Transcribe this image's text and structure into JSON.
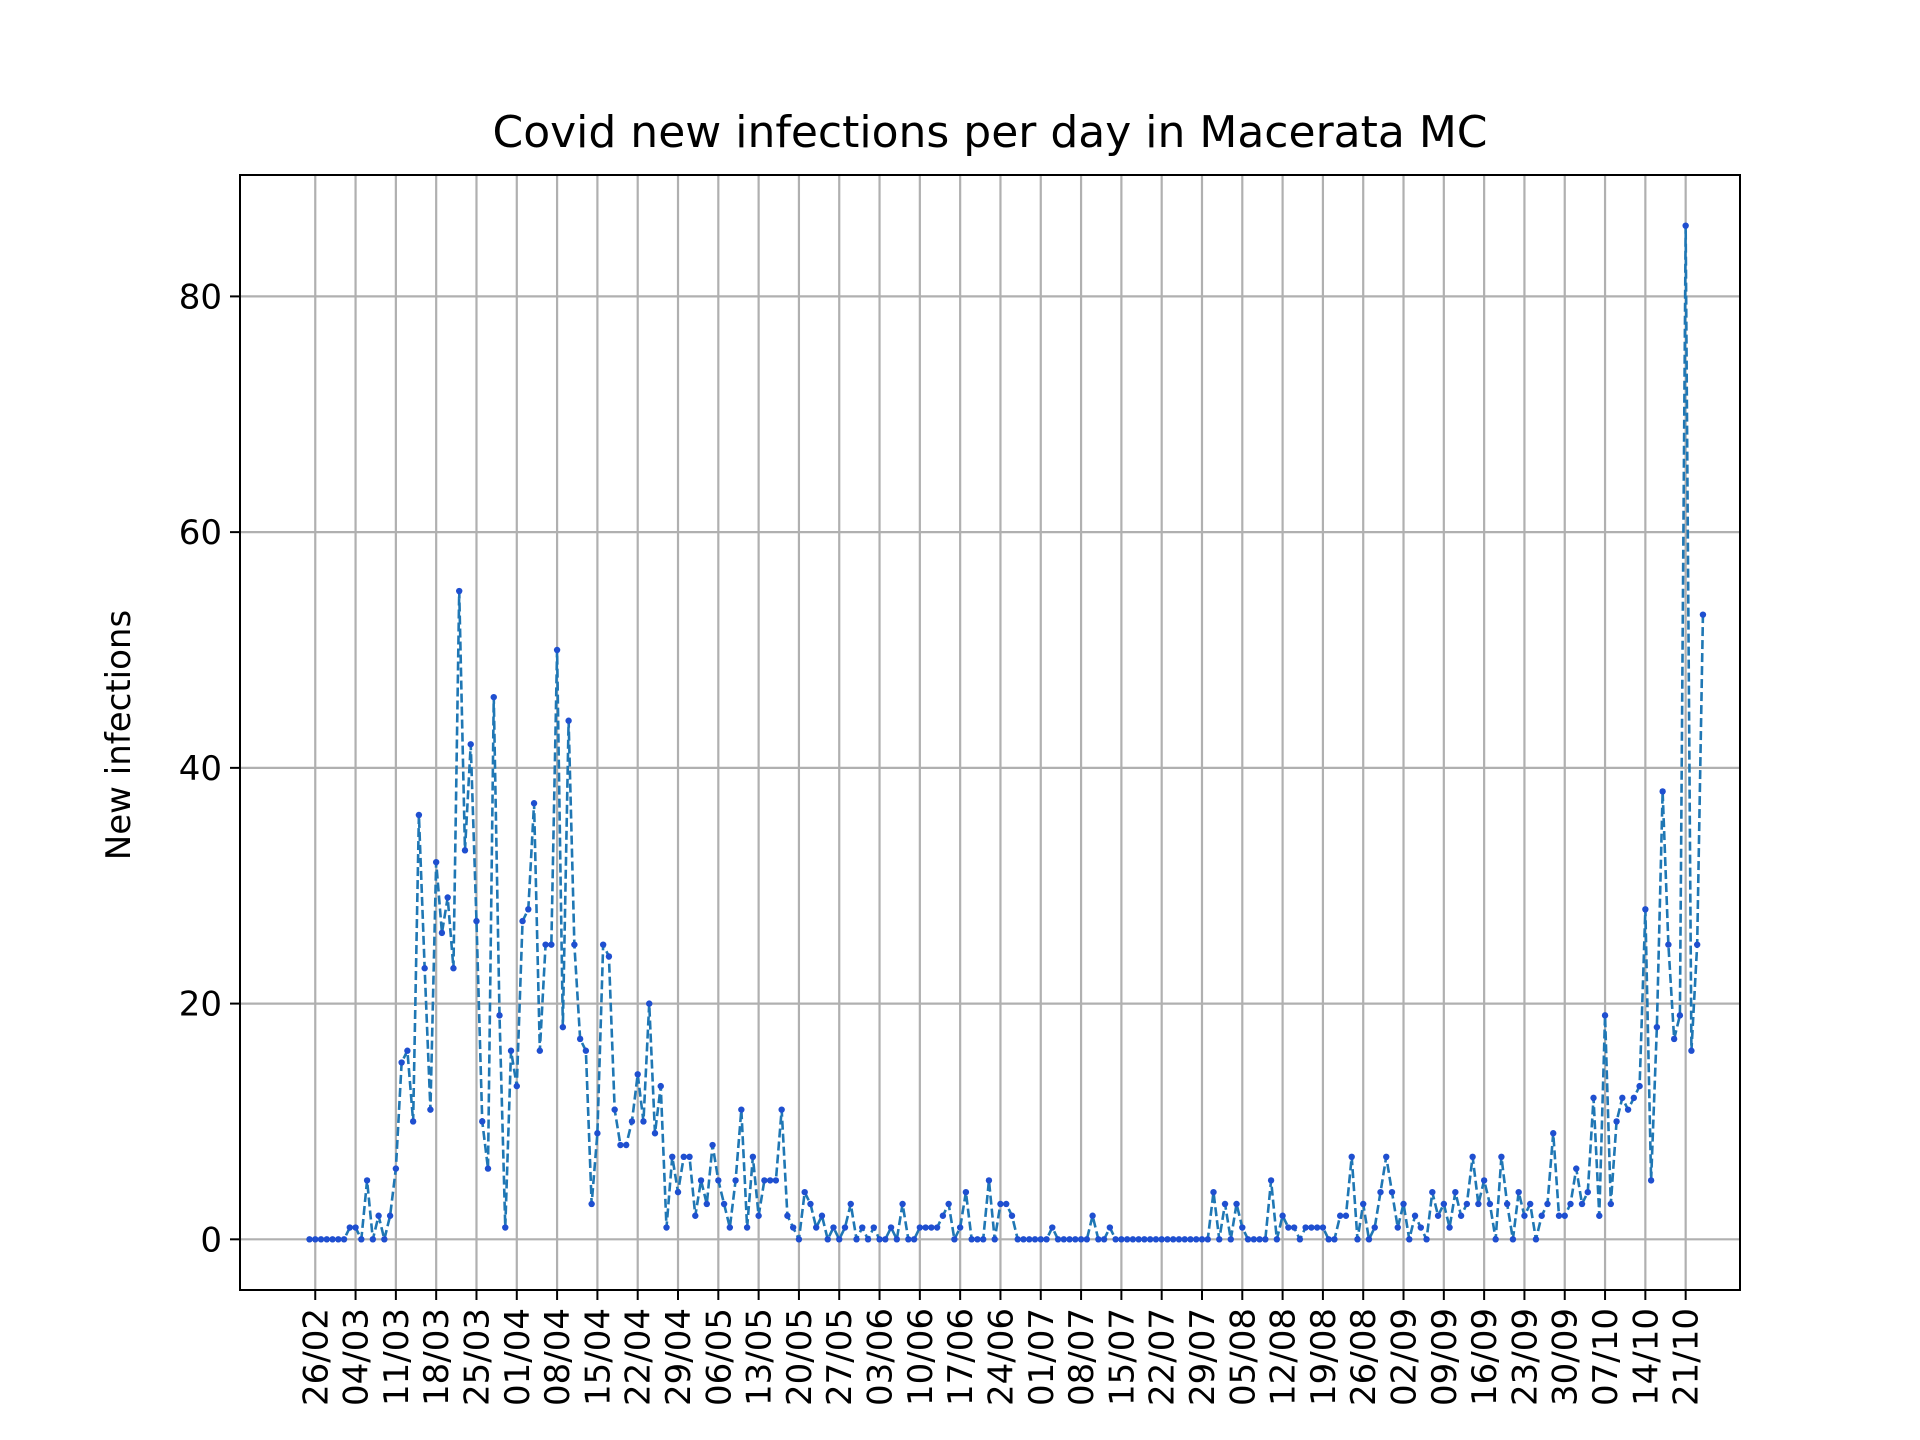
{
  "chart_data": {
    "type": "line",
    "title": "Covid new infections per day in Macerata MC",
    "xlabel": "",
    "ylabel": "New infections",
    "ylim": [
      -4.3,
      90.3
    ],
    "y_ticks": [
      0,
      20,
      40,
      60,
      80
    ],
    "x_ticks": [
      "26/02",
      "04/03",
      "11/03",
      "18/03",
      "25/03",
      "01/04",
      "08/04",
      "15/04",
      "22/04",
      "29/04",
      "06/05",
      "13/05",
      "20/05",
      "27/05",
      "03/06",
      "10/06",
      "17/06",
      "24/06",
      "01/07",
      "08/07",
      "15/07",
      "22/07",
      "29/07",
      "05/08",
      "12/08",
      "19/08",
      "26/08",
      "02/09",
      "09/09",
      "16/09",
      "23/09",
      "30/09",
      "07/10",
      "14/10",
      "21/10"
    ],
    "grid": true,
    "line_color": "#1f77b4",
    "line_style": "dashed",
    "marker_color": "#1f4fd0",
    "series": [
      {
        "start_date": "2020-02-25",
        "values": [
          0,
          0,
          0,
          0,
          0,
          0,
          0,
          1,
          1,
          0,
          5,
          0,
          2,
          0,
          2,
          6,
          15,
          16,
          10,
          36,
          23,
          11,
          32,
          26,
          29,
          23,
          55,
          33,
          42,
          27,
          10,
          6,
          46,
          19,
          1,
          16,
          13,
          27,
          28,
          37,
          16,
          25,
          25,
          50,
          18,
          44,
          25,
          17,
          16,
          3,
          9,
          25,
          24,
          11,
          8,
          8,
          10,
          14,
          10,
          20,
          9,
          13,
          1,
          7,
          4,
          7,
          7,
          2,
          5,
          3,
          8,
          5,
          3,
          1,
          5,
          11,
          1,
          7,
          2,
          5,
          5,
          5,
          11,
          2,
          1,
          0,
          4,
          3,
          1,
          2,
          0,
          1,
          0,
          1,
          3,
          0,
          1,
          0,
          1,
          0,
          0,
          1,
          0,
          3,
          0,
          0,
          1,
          1,
          1,
          1,
          2,
          3,
          0,
          1,
          4,
          0,
          0,
          0,
          5,
          0,
          3,
          3,
          2,
          0,
          0,
          0,
          0,
          0,
          0,
          1,
          0,
          0,
          0,
          0,
          0,
          0,
          2,
          0,
          0,
          1,
          0,
          0,
          0,
          0,
          0,
          0,
          0,
          0,
          0,
          0,
          0,
          0,
          0,
          0,
          0,
          0,
          0,
          4,
          0,
          3,
          0,
          3,
          1,
          0,
          0,
          0,
          0,
          5,
          0,
          2,
          1,
          1,
          0,
          1,
          1,
          1,
          1,
          0,
          0,
          2,
          2,
          7,
          0,
          3,
          0,
          1,
          4,
          7,
          4,
          1,
          3,
          0,
          2,
          1,
          0,
          4,
          2,
          3,
          1,
          4,
          2,
          3,
          7,
          3,
          5,
          3,
          0,
          7,
          3,
          0,
          4,
          2,
          3,
          0,
          2,
          3,
          9,
          2,
          2,
          3,
          6,
          3,
          4,
          12,
          2,
          19,
          3,
          10,
          12,
          11,
          12,
          13,
          28,
          5,
          18,
          38,
          25,
          17,
          19,
          86,
          16,
          25,
          53
        ]
      }
    ]
  }
}
